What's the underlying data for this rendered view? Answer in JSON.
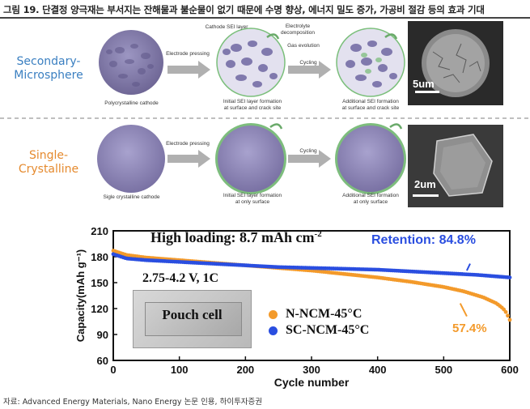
{
  "figure_title": "그림 19. 단결정 양극재는 부서지는 잔해물과 불순물이 없기 때문에 수명 향상, 에너지 밀도 증가, 가공비 절감 등의 효과 기대",
  "source": "자료: Advanced Energy Materials, Nano Energy 논문 인용, 하이투자증권",
  "schematic": {
    "row1_label": [
      "Secondary-",
      "Microsphere"
    ],
    "row2_label": [
      "Single-",
      "Crystalline"
    ],
    "row1": {
      "cathode_caption": "Polycrystalline cathode",
      "arrow1": "Electrode pressing",
      "arrow2": "Cycling",
      "sei_layer": "Cathode SEI layer",
      "electrolyte": [
        "Electrolyte",
        "decomposition"
      ],
      "gas": "Gas evolution",
      "cap2": [
        "Initial SEI layer formation",
        "at surface and crack site"
      ],
      "cap3": [
        "Additional SEI formation",
        "at surface and crack site"
      ],
      "scale": "5um"
    },
    "row2": {
      "cathode_caption": "Sigle crystalline cathode",
      "arrow1": "Electrode pressing",
      "arrow2": "Cycling",
      "cap2": [
        "Initial SEI layer formation",
        "at only surface"
      ],
      "cap3": [
        "Additional SEI formation",
        "at only surface"
      ],
      "scale": "2um"
    },
    "colors": {
      "label": "#3a7fc1",
      "label2": "#e58a2e",
      "particle": "#8a82b0",
      "arrow": "#b0b0b0",
      "sei": "#7dbd7d"
    }
  },
  "chart_data": {
    "type": "scatter",
    "xlabel": "Cycle number",
    "ylabel": "Capacity(mAh g⁻¹)",
    "xlim": [
      0,
      600
    ],
    "ylim": [
      60,
      210
    ],
    "xticks": [
      0,
      100,
      200,
      300,
      400,
      500,
      600
    ],
    "yticks": [
      60,
      90,
      120,
      150,
      180,
      210
    ],
    "annotations": {
      "loading": "High loading: 8.7 mAh cm",
      "loading_sup": "-2",
      "voltage": "2.75-4.2 V, 1C",
      "retention_label": "Retention:",
      "retention_value": "84.8%",
      "orange_value": "57.4%",
      "pouch": "Pouch cell"
    },
    "series": [
      {
        "name": "N-NCM-45°C",
        "color": "#f39a2b",
        "x": [
          0,
          20,
          50,
          100,
          150,
          200,
          250,
          300,
          350,
          400,
          450,
          500,
          530,
          560,
          580,
          590,
          595,
          600
        ],
        "y": [
          187,
          182,
          179,
          176,
          173,
          170,
          167,
          164,
          160,
          156,
          151,
          145,
          140,
          133,
          126,
          120,
          115,
          107
        ]
      },
      {
        "name": "SC-NCM-45°C",
        "color": "#2a4ee0",
        "x": [
          0,
          20,
          50,
          100,
          150,
          200,
          250,
          300,
          350,
          400,
          450,
          500,
          550,
          600
        ],
        "y": [
          183,
          178,
          176,
          174,
          172,
          170,
          168,
          167,
          166,
          165,
          163,
          161,
          159,
          156
        ]
      }
    ]
  }
}
